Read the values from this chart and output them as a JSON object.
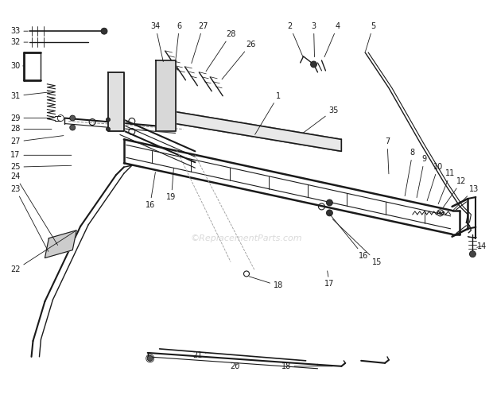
{
  "bg_color": "#ffffff",
  "line_color": "#1a1a1a",
  "watermark": "©ReplacementParts.com",
  "watermark_color": "#bbbbbb",
  "fig_width": 6.2,
  "fig_height": 4.97,
  "dpi": 100
}
